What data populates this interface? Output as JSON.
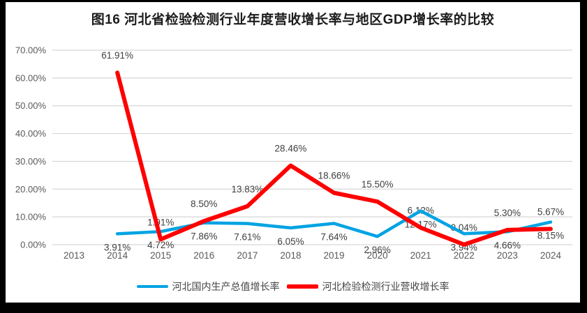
{
  "chart_data": {
    "type": "line",
    "title": "图16 河北省检验检测行业年度营收增长率与地区GDP增长率的比较",
    "categories": [
      "2013",
      "2014",
      "2015",
      "2016",
      "2017",
      "2018",
      "2019",
      "2020",
      "2021",
      "2022",
      "2023",
      "2024"
    ],
    "series": [
      {
        "id": "gdp-growth",
        "name": "河北国内生产总值增长率",
        "color": "#00A3E3",
        "label_position": "below",
        "values": [
          null,
          3.91,
          4.72,
          7.86,
          7.61,
          6.05,
          7.64,
          2.96,
          12.17,
          3.94,
          4.66,
          8.15
        ]
      },
      {
        "id": "revenue-growth",
        "name": "河北检验检测行业营收增长率",
        "color": "#FF0000",
        "label_position": "above",
        "values": [
          null,
          61.91,
          1.91,
          8.5,
          13.83,
          28.46,
          18.66,
          15.5,
          6.12,
          0.04,
          5.3,
          5.67
        ]
      }
    ],
    "y_ticks": [
      "0.00%",
      "10.00%",
      "20.00%",
      "30.00%",
      "40.00%",
      "50.00%",
      "60.00%",
      "70.00%"
    ],
    "ylim": [
      0,
      70
    ],
    "grid": true,
    "legend_position": "bottom",
    "label_format": "0.00%",
    "colors": {
      "frame_border": "#000000",
      "chart_background": "#FFFFFF",
      "gridline": "#D6D6D6",
      "axis_text": "#595959",
      "data_label": "#404040",
      "title_text": "#1C1C1C"
    }
  }
}
